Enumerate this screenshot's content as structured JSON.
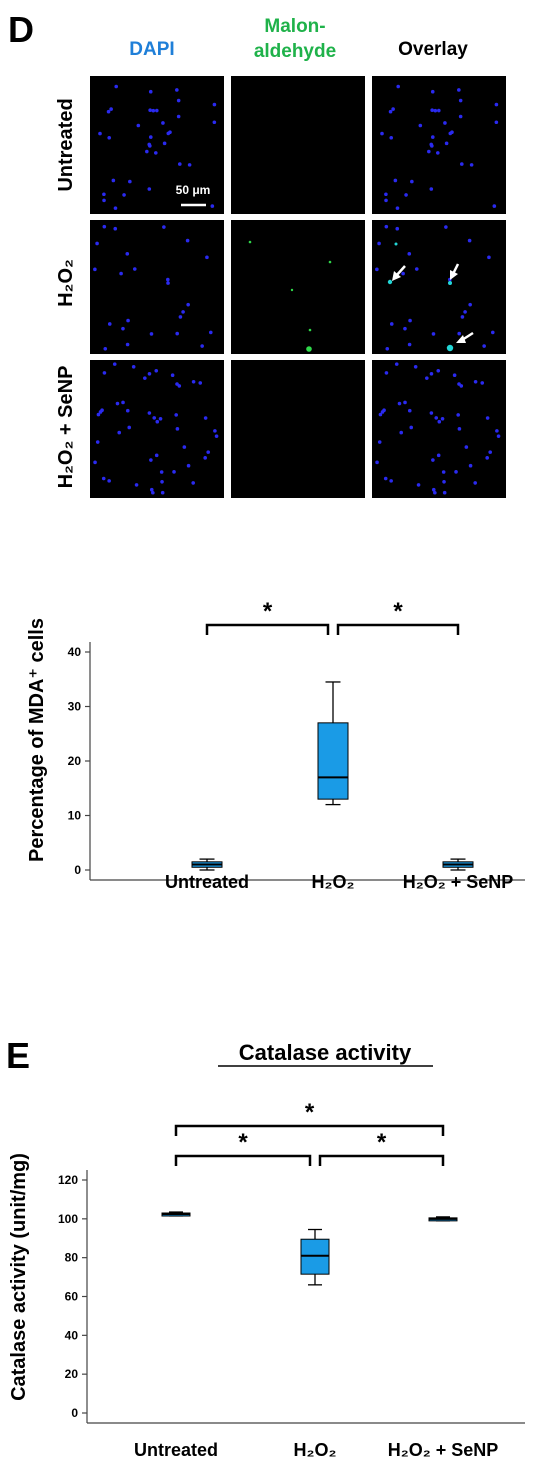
{
  "panel_d": {
    "letter": "D",
    "columns": [
      {
        "lines": [
          "DAPI"
        ],
        "color": "#1f7fd8"
      },
      {
        "lines": [
          "Malon-",
          "aldehyde"
        ],
        "color": "#1fb24a"
      },
      {
        "lines": [
          "Overlay"
        ],
        "color": "#000000"
      }
    ],
    "rows": [
      {
        "base": "Untreated",
        "suffix": ""
      },
      {
        "base": "H₂O₂",
        "suffix": ""
      },
      {
        "base": "H₂O₂",
        "suffix": " + SeNP"
      }
    ],
    "scale_bar": "50 μm",
    "colors": {
      "nucleus": "#2a2af0",
      "mda": "#2fd84a",
      "overlap": "#22d6d6",
      "arrow": "#ffffff"
    }
  },
  "chart_data": [
    {
      "type": "box",
      "title": "",
      "ylabel": "Percentage of MDA⁺ cells",
      "ylim": [
        0,
        40
      ],
      "yticks": [
        0,
        10,
        20,
        30,
        40
      ],
      "categories": [
        "Untreated",
        "H₂O₂",
        "H₂O₂ + SeNP"
      ],
      "boxes": [
        {
          "min": 0,
          "q1": 0.5,
          "median": 1,
          "q3": 1.5,
          "max": 2
        },
        {
          "min": 12,
          "q1": 13,
          "median": 17,
          "q3": 27,
          "max": 34.5
        },
        {
          "min": 0,
          "q1": 0.5,
          "median": 1,
          "q3": 1.5,
          "max": 2
        }
      ],
      "significance": [
        {
          "from": 0,
          "to": 1,
          "label": "*",
          "level": 0
        },
        {
          "from": 1,
          "to": 2,
          "label": "*",
          "level": 0
        }
      ],
      "color": "#1a9be6"
    },
    {
      "type": "box",
      "panel": "E",
      "title": "Catalase activity",
      "ylabel": "Catalase activity (unit/mg)",
      "ylim": [
        0,
        120
      ],
      "yticks": [
        0,
        20,
        40,
        60,
        80,
        100,
        120
      ],
      "categories": [
        "Untreated",
        "H₂O₂",
        "H₂O₂ + SeNP"
      ],
      "boxes": [
        {
          "min": 101.5,
          "q1": 102,
          "median": 102.5,
          "q3": 103,
          "max": 103.5
        },
        {
          "min": 66,
          "q1": 71.5,
          "median": 81,
          "q3": 89.5,
          "max": 94.5
        },
        {
          "min": 99,
          "q1": 99.5,
          "median": 100,
          "q3": 100.5,
          "max": 101
        }
      ],
      "significance": [
        {
          "from": 0,
          "to": 1,
          "label": "*",
          "level": 0
        },
        {
          "from": 1,
          "to": 2,
          "label": "*",
          "level": 0
        },
        {
          "from": 0,
          "to": 2,
          "label": "*",
          "level": 1
        }
      ],
      "color": "#1a9be6"
    }
  ]
}
